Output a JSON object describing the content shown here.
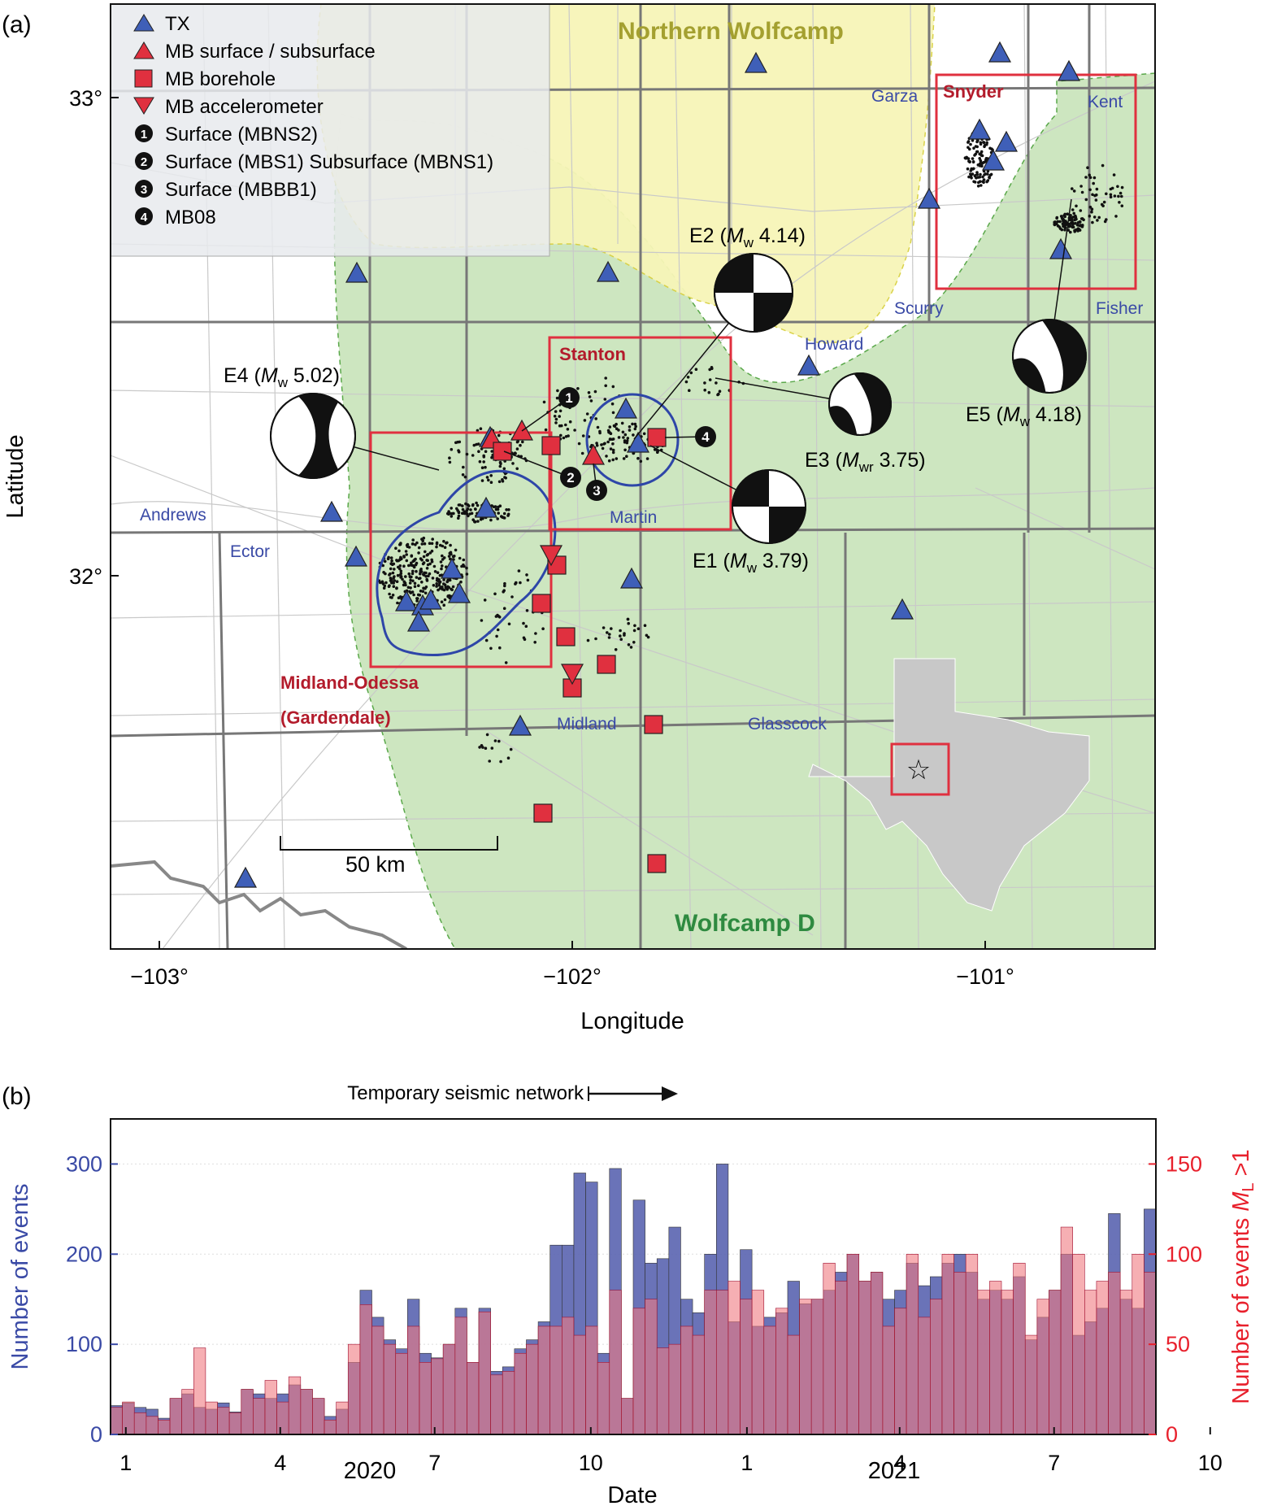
{
  "panel_a": {
    "label": "(a)",
    "xlabel": "Longitude",
    "ylabel": "Latitude",
    "x_ticks": [
      "−103°",
      "−102°",
      "−101°"
    ],
    "y_ticks": [
      "33°",
      "32°"
    ],
    "scale_bar": "50 km",
    "legend": [
      {
        "symbol": "triangle-up",
        "color": "#3f5fb8",
        "label": "TX"
      },
      {
        "symbol": "triangle-up",
        "color": "#e0303f",
        "label": "MB surface / subsurface"
      },
      {
        "symbol": "square",
        "color": "#e0303f",
        "label": "MB borehole"
      },
      {
        "symbol": "triangle-down",
        "color": "#e0303f",
        "label": "MB accelerometer"
      },
      {
        "symbol": "1",
        "label": "Surface (MBNS2)"
      },
      {
        "symbol": "2",
        "label": "Surface (MBS1) Subsurface (MBNS1)"
      },
      {
        "symbol": "3",
        "label": "Surface (MBBB1)"
      },
      {
        "symbol": "4",
        "label": "MB08"
      }
    ],
    "regions": {
      "northern": "Northern Wolfcamp",
      "wolfcamp_d": "Wolfcamp D"
    },
    "areas": {
      "snyder": "Snyder",
      "stanton": "Stanton",
      "midland_odessa": "Midland-Odessa",
      "gardendale": "(Gardendale)"
    },
    "counties": {
      "garza": "Garza",
      "kent": "Kent",
      "scurry": "Scurry",
      "fisher": "Fisher",
      "howard": "Howard",
      "andrews": "Andrews",
      "ector": "Ector",
      "martin": "Martin",
      "midland": "Midland",
      "glasscock": "Glasscock"
    },
    "events": [
      {
        "id": "E1",
        "mag_type": "w",
        "mag": "3.79"
      },
      {
        "id": "E2",
        "mag_type": "w",
        "mag": "4.14"
      },
      {
        "id": "E3",
        "mag_type": "wr",
        "mag": "3.75"
      },
      {
        "id": "E4",
        "mag_type": "w",
        "mag": "5.02"
      },
      {
        "id": "E5",
        "mag_type": "w",
        "mag": "4.18"
      }
    ],
    "station_markers": [
      "1",
      "2",
      "3",
      "4"
    ],
    "colors": {
      "tx": "#3f5fb8",
      "mb": "#e0303f",
      "wolfcamp_d": "#cde6c0",
      "northern": "#f7f5b8",
      "circle": "#2e46a8"
    }
  },
  "panel_b": {
    "label": "(b)",
    "arrow_text": "Temporary seismic network",
    "chart_data": {
      "type": "bar",
      "title": "",
      "xlabel": "Date",
      "ylabel_left": "Number of events",
      "ylabel_right_prefix": "Number of events ",
      "ylabel_right_M": "M",
      "ylabel_right_sub": "L",
      "ylabel_right_suffix": " >1",
      "ylim_left": [
        0,
        350
      ],
      "ylim_right": [
        0,
        175
      ],
      "yticks_left": [
        "0",
        "100",
        "200",
        "300"
      ],
      "yticks_right": [
        "0",
        "50",
        "100",
        "150"
      ],
      "xticks": [
        "1",
        "4",
        "7",
        "10",
        "1",
        "4",
        "7",
        "10"
      ],
      "years": [
        "2020",
        "2021"
      ],
      "bin": "weekly",
      "start": "2019-12-23",
      "series": [
        {
          "name": "Number of events",
          "axis": "left",
          "color": "#5a64b0",
          "values": [
            32,
            35,
            30,
            28,
            18,
            40,
            45,
            30,
            28,
            35,
            25,
            50,
            45,
            40,
            45,
            55,
            50,
            40,
            20,
            28,
            80,
            160,
            130,
            105,
            95,
            150,
            90,
            85,
            100,
            140,
            80,
            140,
            70,
            75,
            95,
            105,
            125,
            210,
            210,
            290,
            280,
            90,
            295,
            40,
            260,
            190,
            195,
            230,
            150,
            135,
            200,
            300,
            125,
            205,
            120,
            130,
            135,
            170,
            145,
            150,
            160,
            180,
            200,
            170,
            180,
            150,
            160,
            190,
            165,
            175,
            190,
            200,
            180,
            150,
            160,
            150,
            175,
            105,
            130,
            160,
            200,
            110,
            125,
            140,
            245,
            150,
            140,
            250
          ]
        },
        {
          "name": "Number of events ML >1",
          "axis": "right",
          "color": "#f07a80",
          "values": [
            15,
            18,
            12,
            10,
            8,
            20,
            25,
            48,
            18,
            15,
            12,
            25,
            20,
            30,
            18,
            32,
            25,
            20,
            8,
            18,
            50,
            72,
            60,
            50,
            45,
            60,
            40,
            42,
            50,
            65,
            40,
            68,
            33,
            35,
            45,
            50,
            60,
            60,
            65,
            55,
            60,
            40,
            80,
            20,
            70,
            75,
            48,
            50,
            60,
            55,
            80,
            80,
            85,
            75,
            80,
            60,
            70,
            55,
            75,
            75,
            95,
            85,
            100,
            85,
            90,
            60,
            70,
            100,
            65,
            75,
            100,
            90,
            100,
            80,
            85,
            80,
            95,
            55,
            75,
            80,
            115,
            100,
            80,
            85,
            90,
            80,
            100,
            90
          ]
        }
      ]
    }
  }
}
